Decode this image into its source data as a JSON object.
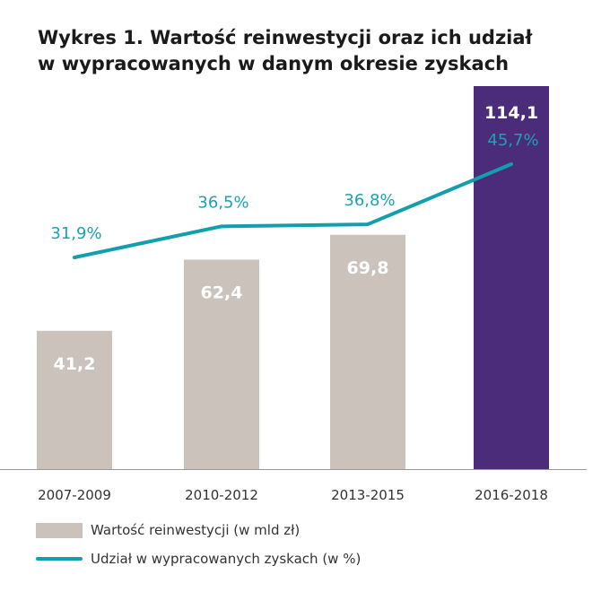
{
  "title": {
    "line1": "Wykres 1. Wartość reinwestycji oraz ich udział",
    "line2": "w wypracowanych w danym okresie zyskach"
  },
  "colors": {
    "bar": "#cbc3bb",
    "bar_highlight": "#4b2c7b",
    "line": "#119fad",
    "bar_label": "#ffffff",
    "line_label": "#1aa3b2"
  },
  "chart_data": {
    "type": "bar",
    "categories": [
      "2007-2009",
      "2010-2012",
      "2013-2015",
      "2016-2018"
    ],
    "series": [
      {
        "name": "Wartość reinwestycji (w mld zł)",
        "type": "bar",
        "values": [
          41.2,
          62.4,
          69.8,
          114.1
        ],
        "labels": [
          "41,2",
          "62,4",
          "69,8",
          "114,1"
        ],
        "highlight_index": 3
      },
      {
        "name": "Udział w wypracowanych zyskach (w %)",
        "type": "line",
        "values": [
          31.9,
          36.5,
          36.8,
          45.7
        ],
        "labels": [
          "31,9%",
          "36,5%",
          "36,8%",
          "45,7%"
        ]
      }
    ],
    "legend_position": "bottom-left",
    "grid": false
  },
  "legend": [
    {
      "label": "Wartość reinwestycji (w mld zł)",
      "kind": "bar"
    },
    {
      "label": "Udział w wypracowanych zyskach (w %)",
      "kind": "line"
    }
  ]
}
